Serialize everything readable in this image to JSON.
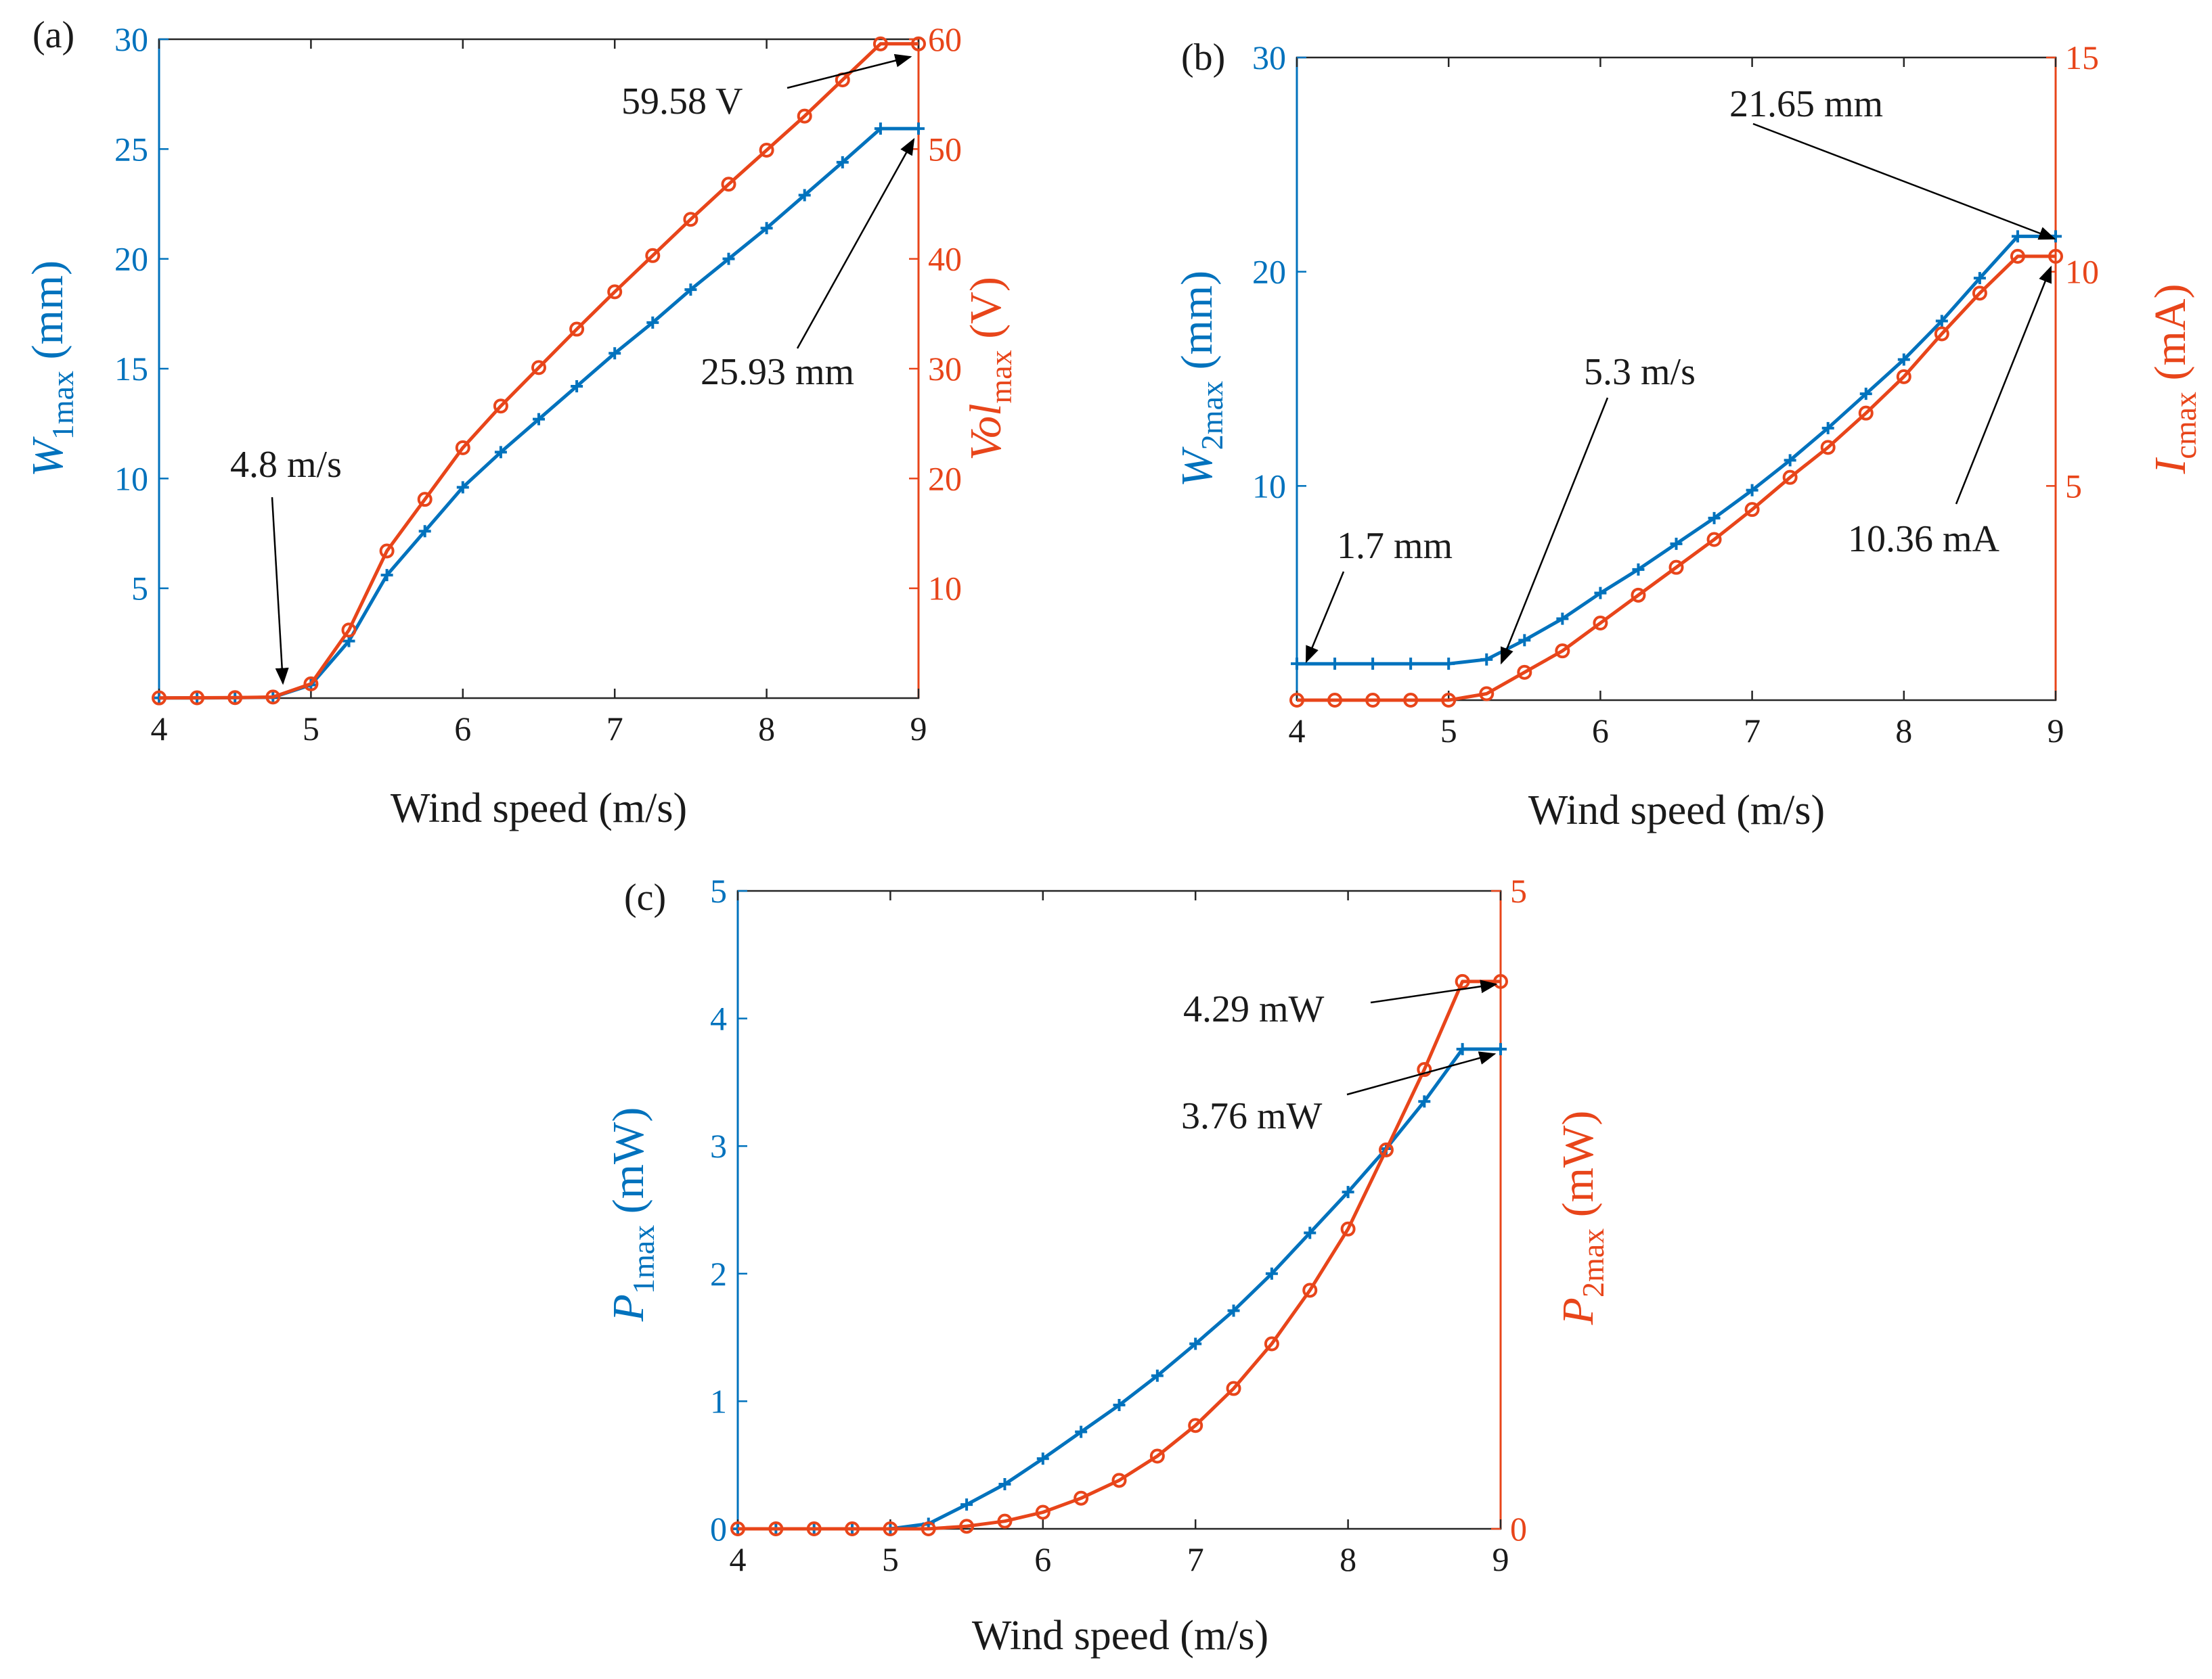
{
  "colors": {
    "blue": "#0072BD",
    "orange": "#E8451A",
    "black": "#1a1a1a"
  },
  "chart_data": [
    {
      "id": "a",
      "type": "line",
      "panel_label": "(a)",
      "xlabel": "Wind speed (m/s)",
      "x_ticks": [
        "4",
        "5",
        "6",
        "7",
        "8",
        "9"
      ],
      "xlim": [
        4,
        9
      ],
      "left_axis": {
        "label_main": "W",
        "label_sub": "1max",
        "label_unit": " (mm)",
        "ylim": [
          0,
          30
        ],
        "ticks": [
          5,
          10,
          15,
          20,
          25,
          30
        ]
      },
      "right_axis": {
        "label_main": "Vol",
        "label_sub": "max",
        "label_unit": " (V)",
        "ylim": [
          0,
          60
        ],
        "ticks": [
          10,
          20,
          30,
          40,
          50,
          60
        ]
      },
      "x": [
        4,
        4.25,
        4.5,
        4.75,
        5,
        5.25,
        5.5,
        5.75,
        6,
        6.25,
        6.5,
        6.75,
        7,
        7.25,
        7.5,
        7.75,
        8,
        8.25,
        8.5,
        8.75,
        9
      ],
      "series": [
        {
          "name": "W1max",
          "axis": "left",
          "marker": "plus",
          "color": "blue",
          "values": [
            0.01,
            0.01,
            0.02,
            0.04,
            0.6,
            2.6,
            5.6,
            7.6,
            9.6,
            11.2,
            12.7,
            14.2,
            15.7,
            17.1,
            18.6,
            20.0,
            21.4,
            22.9,
            24.4,
            25.93,
            25.93
          ]
        },
        {
          "name": "Volmax",
          "axis": "right",
          "marker": "circle",
          "color": "orange",
          "values": [
            0.02,
            0.03,
            0.05,
            0.1,
            1.3,
            6.2,
            13.4,
            18.1,
            22.8,
            26.6,
            30.1,
            33.6,
            37.0,
            40.3,
            43.6,
            46.8,
            49.9,
            53.0,
            56.3,
            59.58,
            59.58
          ]
        }
      ],
      "annotations": [
        {
          "text": "59.58 V",
          "x": 9,
          "y": 59.58,
          "axis": "right"
        },
        {
          "text": "25.93 mm",
          "x": 9,
          "y": 25.93,
          "axis": "left"
        },
        {
          "text": "4.8 m/s",
          "x": 4.8,
          "y": 0.05,
          "axis": "left"
        }
      ]
    },
    {
      "id": "b",
      "type": "line",
      "panel_label": "(b)",
      "xlabel": "Wind speed (m/s)",
      "x_ticks": [
        "4",
        "5",
        "6",
        "7",
        "8",
        "9"
      ],
      "xlim": [
        4,
        9
      ],
      "left_axis": {
        "label_main": "W",
        "label_sub": "2max",
        "label_unit": " (mm)",
        "ylim": [
          0,
          30
        ],
        "ticks": [
          10,
          20,
          30
        ]
      },
      "right_axis": {
        "label_main": "I",
        "label_sub": "cmax",
        "label_unit": " (mA)",
        "ylim": [
          0,
          15
        ],
        "ticks": [
          5,
          10,
          15
        ]
      },
      "x": [
        4,
        4.25,
        4.5,
        4.75,
        5,
        5.25,
        5.5,
        5.75,
        6,
        6.25,
        6.5,
        6.75,
        7,
        7.25,
        7.5,
        7.75,
        8,
        8.25,
        8.5,
        8.75,
        9
      ],
      "series": [
        {
          "name": "W2max",
          "axis": "left",
          "marker": "plus",
          "color": "blue",
          "values": [
            1.7,
            1.7,
            1.7,
            1.7,
            1.7,
            1.9,
            2.8,
            3.8,
            5.0,
            6.1,
            7.3,
            8.5,
            9.8,
            11.2,
            12.7,
            14.3,
            15.9,
            17.7,
            19.7,
            21.65,
            21.65
          ]
        },
        {
          "name": "Icmax",
          "axis": "right",
          "marker": "circle",
          "color": "orange",
          "values": [
            0,
            0,
            0,
            0,
            0,
            0.15,
            0.65,
            1.15,
            1.8,
            2.45,
            3.1,
            3.75,
            4.45,
            5.2,
            5.9,
            6.7,
            7.55,
            8.55,
            9.5,
            10.36,
            10.36
          ]
        }
      ],
      "annotations": [
        {
          "text": "21.65 mm",
          "x": 9,
          "y": 21.65,
          "axis": "left"
        },
        {
          "text": "5.3 m/s",
          "x": 5.3,
          "y": 1.9,
          "axis": "left"
        },
        {
          "text": "1.7 mm",
          "x": 4,
          "y": 1.7,
          "axis": "left"
        },
        {
          "text": "10.36 mA",
          "x": 9,
          "y": 10.36,
          "axis": "right"
        }
      ]
    },
    {
      "id": "c",
      "type": "line",
      "panel_label": "(c)",
      "xlabel": "Wind speed (m/s)",
      "x_ticks": [
        "4",
        "5",
        "6",
        "7",
        "8",
        "9"
      ],
      "xlim": [
        4,
        9
      ],
      "left_axis": {
        "label_main": "P",
        "label_sub": "1max",
        "label_unit": " (mW)",
        "ylim": [
          0,
          5
        ],
        "ticks": [
          0,
          1,
          2,
          3,
          4,
          5
        ]
      },
      "right_axis": {
        "label_main": "P",
        "label_sub": "2max",
        "label_unit": " (mW)",
        "ylim": [
          0,
          5
        ],
        "ticks": [
          0,
          5
        ]
      },
      "x": [
        4,
        4.25,
        4.5,
        4.75,
        5,
        5.25,
        5.5,
        5.75,
        6,
        6.25,
        6.5,
        6.75,
        7,
        7.25,
        7.5,
        7.75,
        8,
        8.25,
        8.5,
        8.75,
        9
      ],
      "series": [
        {
          "name": "P1max",
          "axis": "left",
          "marker": "plus",
          "color": "blue",
          "values": [
            0,
            0,
            0,
            0,
            0,
            0.04,
            0.19,
            0.35,
            0.55,
            0.76,
            0.97,
            1.2,
            1.45,
            1.71,
            2.0,
            2.32,
            2.64,
            2.98,
            3.35,
            3.76,
            3.76
          ]
        },
        {
          "name": "P2max",
          "axis": "right",
          "marker": "circle",
          "color": "orange",
          "values": [
            0,
            0,
            0,
            0,
            0,
            0,
            0.02,
            0.06,
            0.13,
            0.24,
            0.38,
            0.57,
            0.81,
            1.1,
            1.45,
            1.87,
            2.35,
            2.97,
            3.6,
            4.29,
            4.29
          ]
        }
      ],
      "annotations": [
        {
          "text": "4.29 mW",
          "x": 9,
          "y": 4.29,
          "axis": "right"
        },
        {
          "text": "3.76 mW",
          "x": 9,
          "y": 3.76,
          "axis": "left"
        }
      ]
    }
  ]
}
